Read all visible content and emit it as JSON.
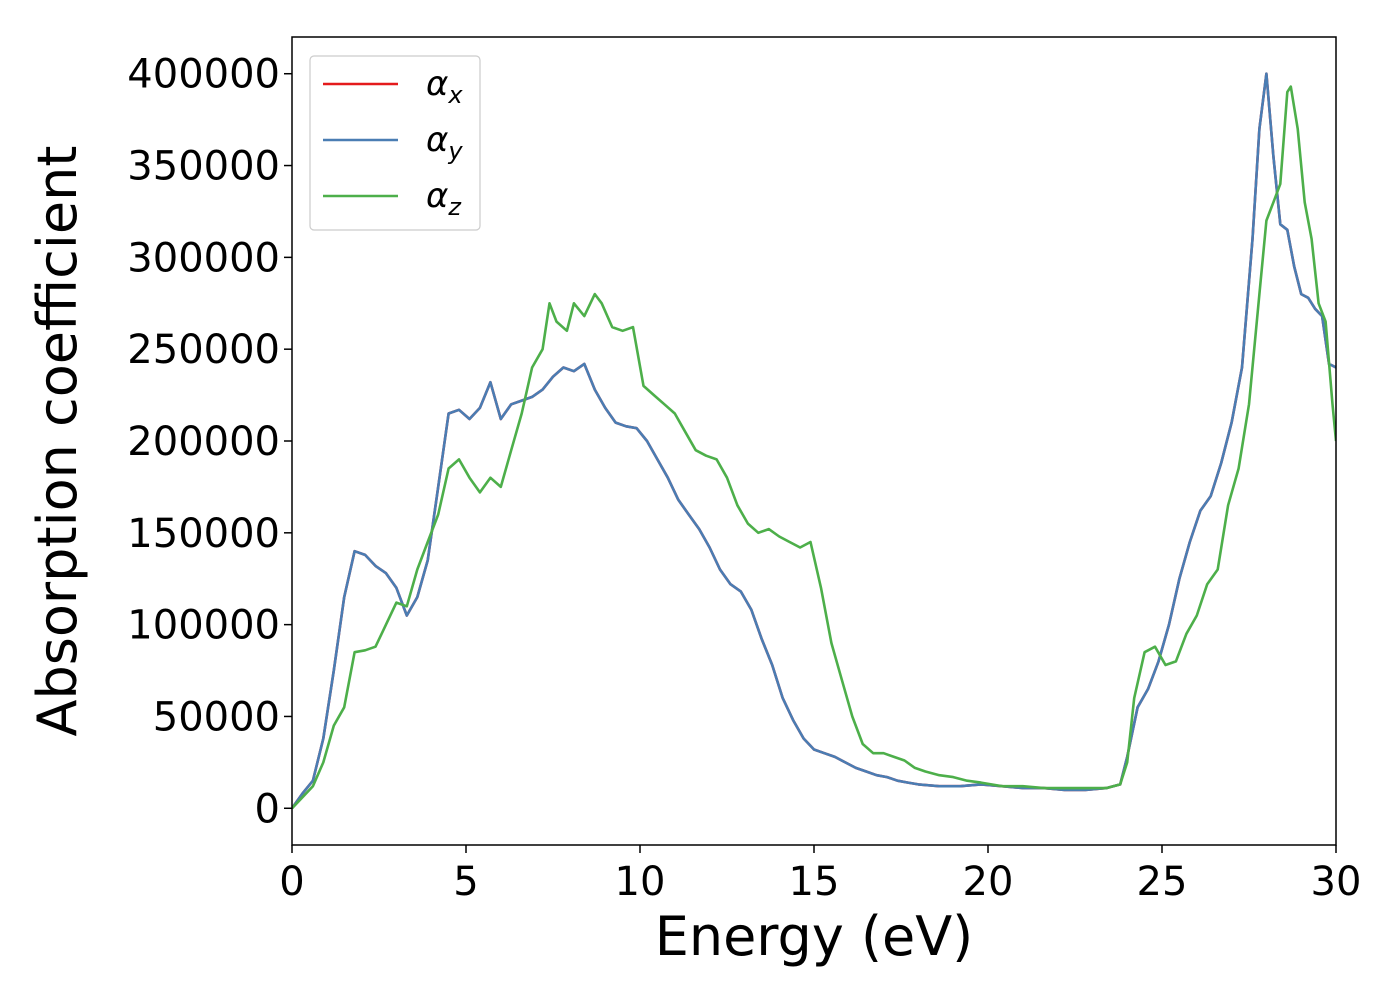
{
  "chart_data": {
    "type": "line",
    "title": "",
    "xlabel": "Energy (eV)",
    "ylabel": "Absorption coefficient",
    "xlim": [
      0,
      30
    ],
    "ylim": [
      -20000,
      420000
    ],
    "xticks": [
      0,
      5,
      10,
      15,
      20,
      25,
      30
    ],
    "yticks": [
      0,
      50000,
      100000,
      150000,
      200000,
      250000,
      300000,
      350000,
      400000
    ],
    "grid": false,
    "legend": {
      "placement": "top-left"
    },
    "series": [
      {
        "name": "α",
        "subscript": "x",
        "color": "#e41a1c",
        "x": [
          0,
          0.3,
          0.6,
          0.9,
          1.2,
          1.5,
          1.8,
          2.1,
          2.4,
          2.7,
          3.0,
          3.3,
          3.6,
          3.9,
          4.2,
          4.5,
          4.8,
          5.1,
          5.4,
          5.7,
          6.0,
          6.3,
          6.6,
          6.9,
          7.2,
          7.5,
          7.8,
          8.1,
          8.4,
          8.7,
          9.0,
          9.3,
          9.6,
          9.9,
          10.2,
          10.5,
          10.8,
          11.1,
          11.4,
          11.7,
          12.0,
          12.3,
          12.6,
          12.9,
          13.2,
          13.5,
          13.8,
          14.1,
          14.4,
          14.7,
          15.0,
          15.3,
          15.6,
          15.9,
          16.2,
          16.5,
          16.8,
          17.1,
          17.4,
          17.7,
          18.0,
          18.6,
          19.2,
          19.8,
          20.4,
          21.0,
          21.6,
          22.2,
          22.8,
          23.4,
          23.8,
          24.0,
          24.3,
          24.6,
          24.9,
          25.2,
          25.5,
          25.8,
          26.1,
          26.4,
          26.7,
          27.0,
          27.3,
          27.6,
          27.8,
          28.0,
          28.2,
          28.4,
          28.6,
          28.8,
          29.0,
          29.2,
          29.4,
          29.6,
          29.8,
          30.0
        ],
        "y": [
          0,
          8000,
          15000,
          38000,
          75000,
          115000,
          140000,
          138000,
          132000,
          128000,
          120000,
          105000,
          115000,
          135000,
          175000,
          215000,
          217000,
          212000,
          218000,
          232000,
          212000,
          220000,
          222000,
          224000,
          228000,
          235000,
          240000,
          238000,
          242000,
          228000,
          218000,
          210000,
          208000,
          207000,
          200000,
          190000,
          180000,
          168000,
          160000,
          152000,
          142000,
          130000,
          122000,
          118000,
          108000,
          92000,
          78000,
          60000,
          48000,
          38000,
          32000,
          30000,
          28000,
          25000,
          22000,
          20000,
          18000,
          17000,
          15000,
          14000,
          13000,
          12000,
          12000,
          13000,
          12000,
          11000,
          11000,
          10000,
          10000,
          11000,
          13000,
          28000,
          55000,
          65000,
          80000,
          100000,
          125000,
          145000,
          162000,
          170000,
          188000,
          210000,
          240000,
          310000,
          370000,
          400000,
          355000,
          318000,
          315000,
          295000,
          280000,
          278000,
          272000,
          268000,
          242000,
          240000
        ]
      },
      {
        "name": "α",
        "subscript": "y",
        "color": "#4a7db3",
        "x": [
          0,
          0.3,
          0.6,
          0.9,
          1.2,
          1.5,
          1.8,
          2.1,
          2.4,
          2.7,
          3.0,
          3.3,
          3.6,
          3.9,
          4.2,
          4.5,
          4.8,
          5.1,
          5.4,
          5.7,
          6.0,
          6.3,
          6.6,
          6.9,
          7.2,
          7.5,
          7.8,
          8.1,
          8.4,
          8.7,
          9.0,
          9.3,
          9.6,
          9.9,
          10.2,
          10.5,
          10.8,
          11.1,
          11.4,
          11.7,
          12.0,
          12.3,
          12.6,
          12.9,
          13.2,
          13.5,
          13.8,
          14.1,
          14.4,
          14.7,
          15.0,
          15.3,
          15.6,
          15.9,
          16.2,
          16.5,
          16.8,
          17.1,
          17.4,
          17.7,
          18.0,
          18.6,
          19.2,
          19.8,
          20.4,
          21.0,
          21.6,
          22.2,
          22.8,
          23.4,
          23.8,
          24.0,
          24.3,
          24.6,
          24.9,
          25.2,
          25.5,
          25.8,
          26.1,
          26.4,
          26.7,
          27.0,
          27.3,
          27.6,
          27.8,
          28.0,
          28.2,
          28.4,
          28.6,
          28.8,
          29.0,
          29.2,
          29.4,
          29.6,
          29.8,
          30.0
        ],
        "y": [
          0,
          8000,
          15000,
          38000,
          75000,
          115000,
          140000,
          138000,
          132000,
          128000,
          120000,
          105000,
          115000,
          135000,
          175000,
          215000,
          217000,
          212000,
          218000,
          232000,
          212000,
          220000,
          222000,
          224000,
          228000,
          235000,
          240000,
          238000,
          242000,
          228000,
          218000,
          210000,
          208000,
          207000,
          200000,
          190000,
          180000,
          168000,
          160000,
          152000,
          142000,
          130000,
          122000,
          118000,
          108000,
          92000,
          78000,
          60000,
          48000,
          38000,
          32000,
          30000,
          28000,
          25000,
          22000,
          20000,
          18000,
          17000,
          15000,
          14000,
          13000,
          12000,
          12000,
          13000,
          12000,
          11000,
          11000,
          10000,
          10000,
          11000,
          13000,
          28000,
          55000,
          65000,
          80000,
          100000,
          125000,
          145000,
          162000,
          170000,
          188000,
          210000,
          240000,
          310000,
          370000,
          400000,
          355000,
          318000,
          315000,
          295000,
          280000,
          278000,
          272000,
          268000,
          242000,
          240000
        ]
      },
      {
        "name": "α",
        "subscript": "z",
        "color": "#4daf4a",
        "x": [
          0,
          0.3,
          0.6,
          0.9,
          1.2,
          1.5,
          1.8,
          2.1,
          2.4,
          2.7,
          3.0,
          3.3,
          3.6,
          3.9,
          4.2,
          4.5,
          4.8,
          5.1,
          5.4,
          5.7,
          6.0,
          6.3,
          6.6,
          6.9,
          7.2,
          7.4,
          7.6,
          7.9,
          8.1,
          8.4,
          8.7,
          8.9,
          9.2,
          9.5,
          9.8,
          10.1,
          10.4,
          10.7,
          11.0,
          11.3,
          11.6,
          11.9,
          12.2,
          12.5,
          12.8,
          13.1,
          13.4,
          13.7,
          14.0,
          14.3,
          14.6,
          14.9,
          15.2,
          15.5,
          15.8,
          16.1,
          16.4,
          16.7,
          17.0,
          17.3,
          17.6,
          17.9,
          18.2,
          18.6,
          19.0,
          19.4,
          19.8,
          20.4,
          21.0,
          21.6,
          22.2,
          22.8,
          23.4,
          23.8,
          24.0,
          24.2,
          24.5,
          24.8,
          25.1,
          25.4,
          25.7,
          26.0,
          26.3,
          26.6,
          26.9,
          27.2,
          27.5,
          27.8,
          28.0,
          28.2,
          28.4,
          28.6,
          28.7,
          28.9,
          29.1,
          29.3,
          29.5,
          29.7,
          29.9,
          30.0
        ],
        "y": [
          0,
          6000,
          12000,
          25000,
          45000,
          55000,
          85000,
          86000,
          88000,
          100000,
          112000,
          110000,
          130000,
          145000,
          160000,
          185000,
          190000,
          180000,
          172000,
          180000,
          175000,
          195000,
          215000,
          240000,
          250000,
          275000,
          265000,
          260000,
          275000,
          268000,
          280000,
          275000,
          262000,
          260000,
          262000,
          230000,
          225000,
          220000,
          215000,
          205000,
          195000,
          192000,
          190000,
          180000,
          165000,
          155000,
          150000,
          152000,
          148000,
          145000,
          142000,
          145000,
          120000,
          90000,
          70000,
          50000,
          35000,
          30000,
          30000,
          28000,
          26000,
          22000,
          20000,
          18000,
          17000,
          15000,
          14000,
          12000,
          12000,
          11000,
          11000,
          11000,
          11000,
          13000,
          25000,
          60000,
          85000,
          88000,
          78000,
          80000,
          95000,
          105000,
          122000,
          130000,
          165000,
          185000,
          220000,
          280000,
          320000,
          330000,
          340000,
          390000,
          393000,
          370000,
          330000,
          310000,
          275000,
          265000,
          220000,
          200000
        ]
      }
    ]
  }
}
